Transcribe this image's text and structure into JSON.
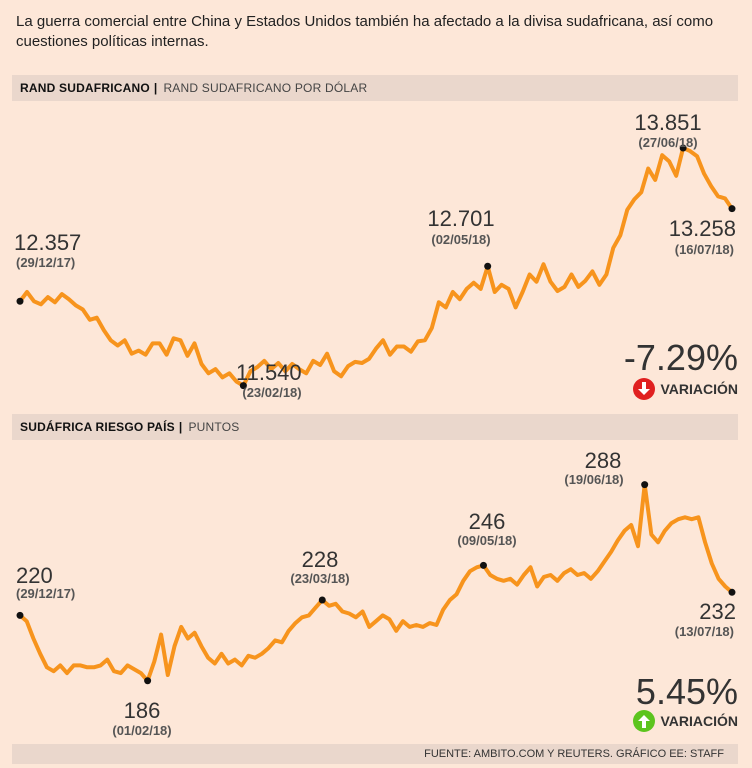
{
  "intro": "La guerra comercial entre China y Estados Unidos también ha afectado a la divisa sudafricana, así como cuestiones políticas internas.",
  "colors": {
    "line": "#f7941d",
    "down": "#e02020",
    "up": "#5cc41e",
    "bar": "#ead7cc",
    "background": "#fde7d8"
  },
  "chart_data": [
    {
      "type": "line",
      "title": "RAND SUDAFRICANO",
      "subtitle": "RAND SUDAFRICANO POR DÓLAR",
      "series": [
        {
          "name": "Rand por dólar",
          "values": [
            12.36,
            12.45,
            12.36,
            12.33,
            12.4,
            12.35,
            12.43,
            12.38,
            12.32,
            12.28,
            12.18,
            12.2,
            12.08,
            11.98,
            11.93,
            11.98,
            11.85,
            11.88,
            11.84,
            11.95,
            11.95,
            11.84,
            12.0,
            11.98,
            11.83,
            11.95,
            11.75,
            11.66,
            11.7,
            11.62,
            11.66,
            11.58,
            11.54,
            11.68,
            11.72,
            11.78,
            11.7,
            11.76,
            11.68,
            11.75,
            11.7,
            11.66,
            11.78,
            11.74,
            11.85,
            11.68,
            11.63,
            11.73,
            11.77,
            11.76,
            11.8,
            11.9,
            11.98,
            11.84,
            11.92,
            11.92,
            11.87,
            11.97,
            11.98,
            12.1,
            12.35,
            12.3,
            12.45,
            12.38,
            12.48,
            12.54,
            12.48,
            12.7,
            12.45,
            12.52,
            12.48,
            12.3,
            12.45,
            12.62,
            12.55,
            12.72,
            12.55,
            12.46,
            12.5,
            12.62,
            12.5,
            12.56,
            12.65,
            12.52,
            12.62,
            12.88,
            13.0,
            13.25,
            13.35,
            13.42,
            13.65,
            13.54,
            13.78,
            13.72,
            13.58,
            13.85,
            13.82,
            13.77,
            13.6,
            13.48,
            13.38,
            13.36,
            13.26
          ]
        }
      ],
      "ylim": [
        11.4,
        14.2
      ],
      "annotations": [
        {
          "value": "12.357",
          "date": "(29/12/17)",
          "index": 0
        },
        {
          "value": "11.540",
          "date": "(23/02/18)",
          "index": 32
        },
        {
          "value": "12.701",
          "date": "(02/05/18)",
          "index": 67
        },
        {
          "value": "13.851",
          "date": "(27/06/18)",
          "index": 95
        },
        {
          "value": "13.258",
          "date": "(16/07/18)",
          "index": 102
        }
      ],
      "variation": {
        "value": "-7.29%",
        "label": "VARIACIÓN",
        "direction": "down"
      }
    },
    {
      "type": "line",
      "title": "SUDÁFRICA RIESGO PAÍS",
      "subtitle": "PUNTOS",
      "series": [
        {
          "name": "Riesgo país (puntos)",
          "values": [
            220,
            217,
            208,
            200,
            193,
            191,
            194,
            190,
            194,
            194,
            193,
            193,
            194,
            197,
            191,
            190,
            194,
            192,
            190,
            186,
            196,
            210,
            189,
            204,
            214,
            208,
            211,
            204,
            198,
            195,
            200,
            195,
            197,
            194,
            199,
            198,
            200,
            203,
            207,
            206,
            212,
            216,
            219,
            220,
            224,
            228,
            225,
            226,
            222,
            221,
            219,
            222,
            214,
            217,
            220,
            218,
            212,
            217,
            214,
            215,
            214,
            216,
            215,
            223,
            228,
            231,
            238,
            243,
            245,
            246,
            241,
            239,
            238,
            239,
            236,
            241,
            245,
            235,
            240,
            241,
            238,
            242,
            244,
            241,
            242,
            239,
            243,
            248,
            253,
            259,
            264,
            267,
            256,
            288,
            262,
            258,
            264,
            268,
            270,
            271,
            270,
            271,
            258,
            247,
            239,
            235,
            232
          ]
        }
      ],
      "ylim": [
        176,
        306
      ],
      "annotations": [
        {
          "value": "220",
          "date": "(29/12/17)",
          "index": 0
        },
        {
          "value": "186",
          "date": "(01/02/18)",
          "index": 19
        },
        {
          "value": "228",
          "date": "(23/03/18)",
          "index": 45
        },
        {
          "value": "246",
          "date": "(09/05/18)",
          "index": 69
        },
        {
          "value": "288",
          "date": "(19/06/18)",
          "index": 93
        },
        {
          "value": "232",
          "date": "(13/07/18)",
          "index": 106
        }
      ],
      "variation": {
        "value": "5.45%",
        "label": "VARIACIÓN",
        "direction": "up"
      }
    }
  ],
  "footer": "FUENTE: AMBITO.COM Y REUTERS. GRÁFICO EE: STAFF"
}
